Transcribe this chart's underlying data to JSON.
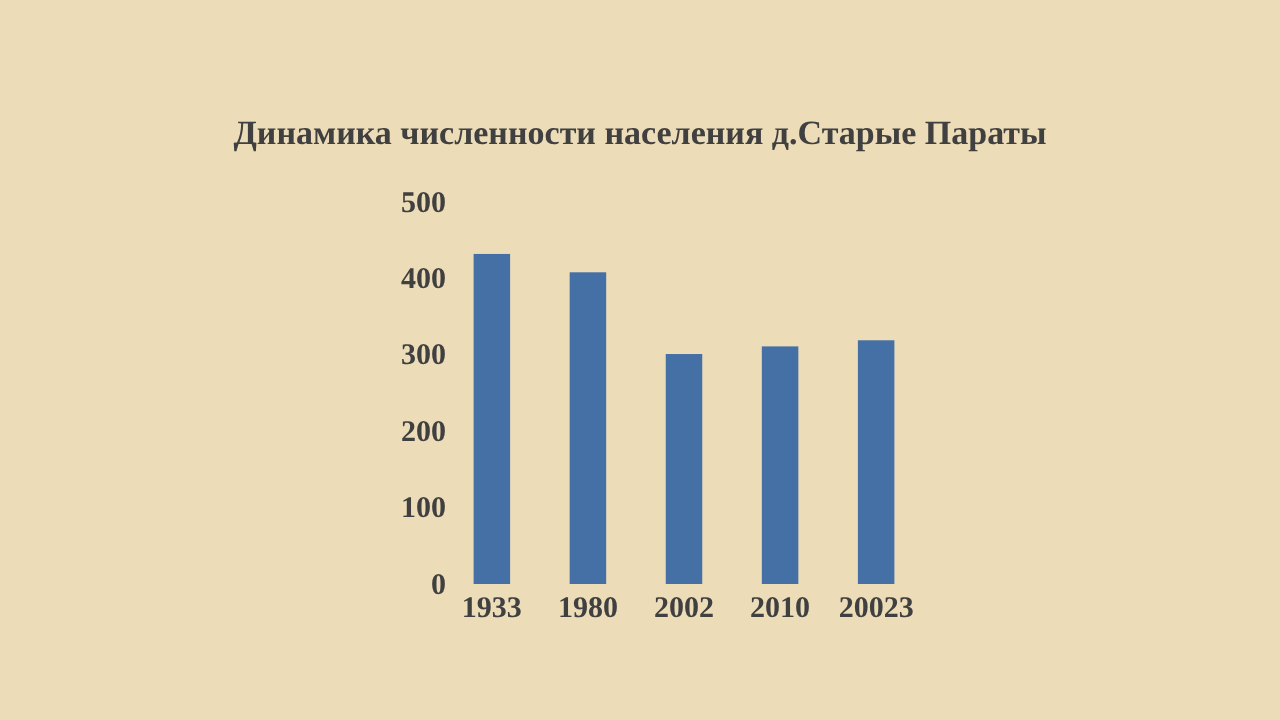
{
  "chart_data": {
    "type": "bar",
    "title": "Динамика численности населения д.Старые Параты",
    "categories": [
      "1933",
      "1980",
      "2002",
      "2010",
      "20023"
    ],
    "values": [
      432,
      408,
      301,
      311,
      319
    ],
    "color": "#4470a6",
    "ylim": [
      0,
      500
    ],
    "yticks": [
      0,
      100,
      200,
      300,
      400,
      500
    ],
    "grid": false
  }
}
